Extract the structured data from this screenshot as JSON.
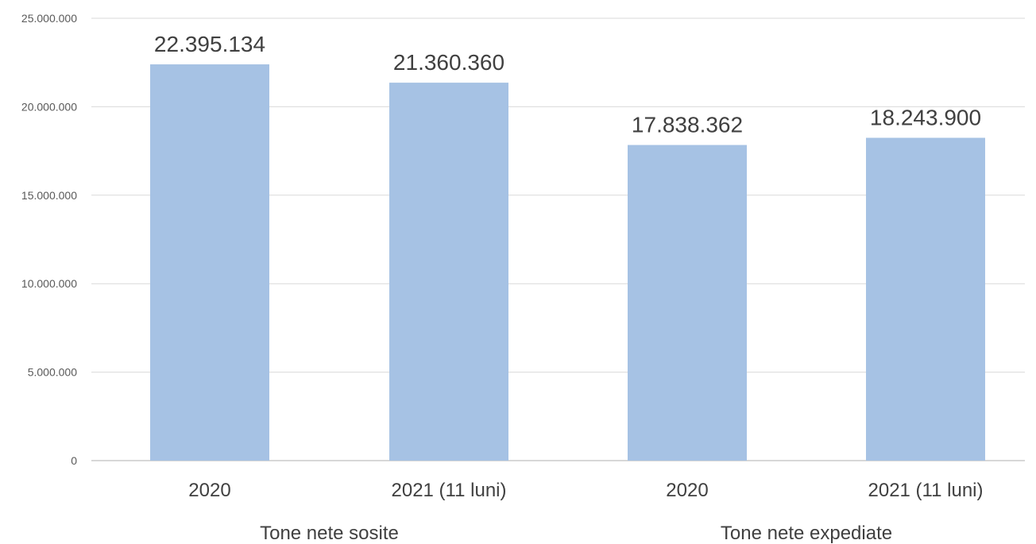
{
  "chart_data": {
    "type": "bar",
    "categories": [
      "2020",
      "2021 (11 luni)",
      "2020",
      "2021 (11 luni)"
    ],
    "groups": [
      {
        "label": "Tone nete sosite",
        "categories": [
          0,
          1
        ]
      },
      {
        "label": "Tone nete expediate",
        "categories": [
          2,
          3
        ]
      }
    ],
    "values": [
      22395134,
      21360360,
      17838362,
      18243900
    ],
    "data_labels": [
      "22.395.134",
      "21.360.360",
      "17.838.362",
      "18.243.900"
    ],
    "ylim": [
      0,
      25000000
    ],
    "yticks": [
      0,
      5000000,
      10000000,
      15000000,
      20000000,
      25000000
    ],
    "ytick_labels": [
      "0",
      "5.000.000",
      "10.000.000",
      "15.000.000",
      "20.000.000",
      "25.000.000"
    ],
    "title": "",
    "xlabel": "",
    "ylabel": "",
    "grid": true,
    "legend": "none",
    "bar_color": "#a6c2e4"
  }
}
